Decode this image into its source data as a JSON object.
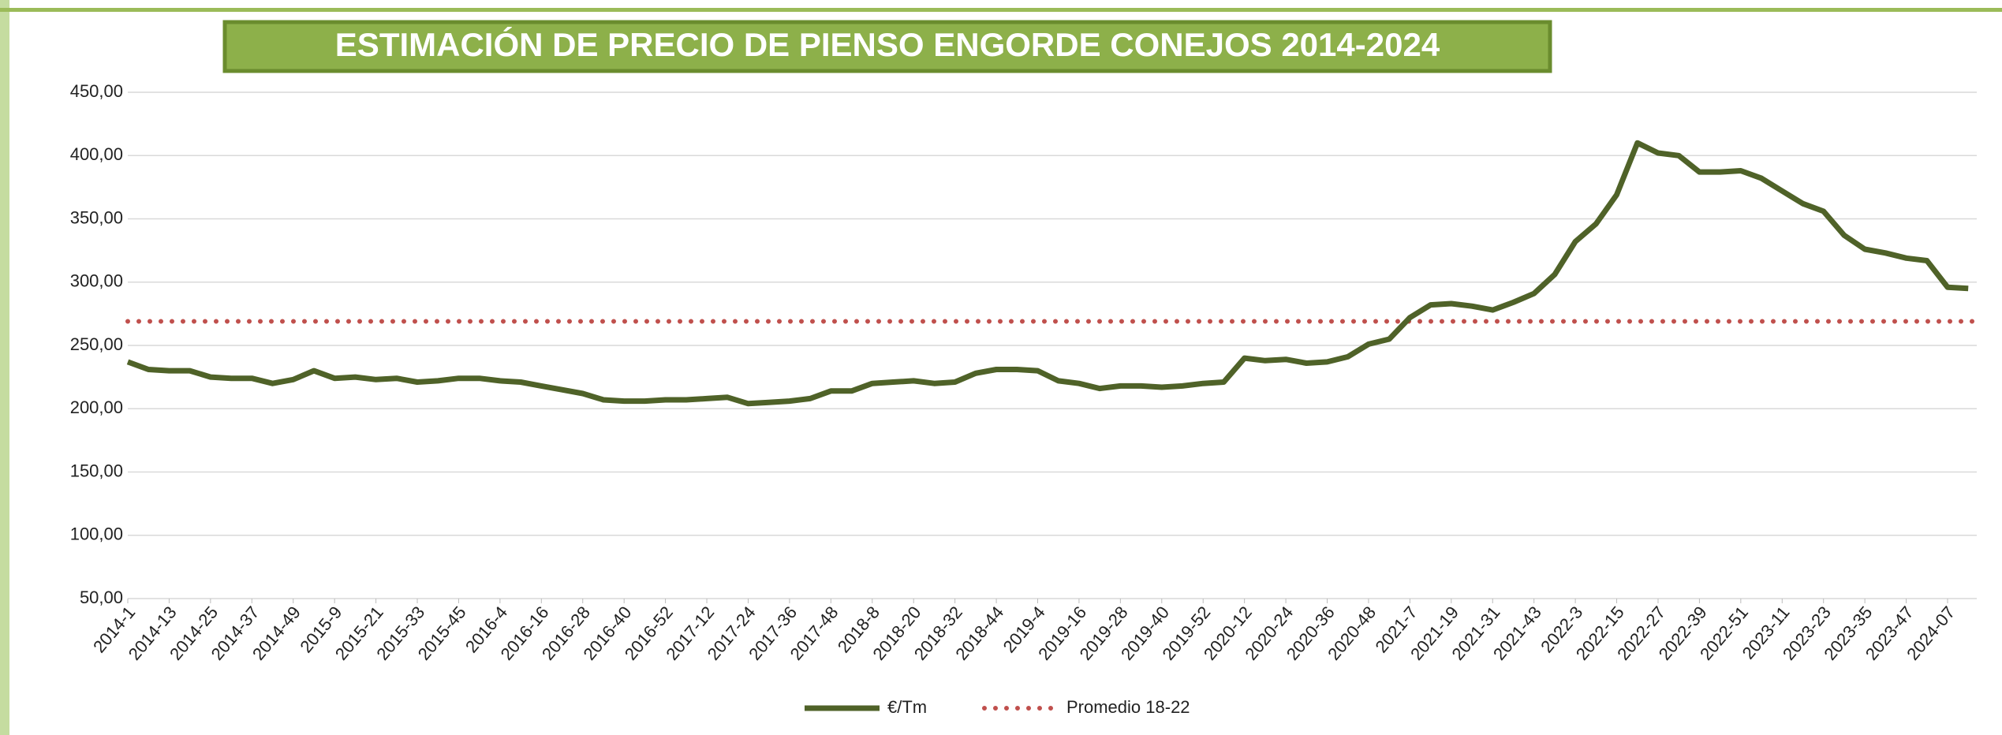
{
  "chart_data": {
    "type": "line",
    "title": "ESTIMACIÓN DE PRECIO DE PIENSO ENGORDE CONEJOS 2014-2024",
    "categories": [
      "2014-1",
      null,
      "2014-13",
      null,
      "2014-25",
      null,
      "2014-37",
      null,
      "2014-49",
      null,
      "2015-9",
      null,
      "2015-21",
      null,
      "2015-33",
      null,
      "2015-45",
      null,
      "2016-4",
      null,
      "2016-16",
      null,
      "2016-28",
      null,
      "2016-40",
      null,
      "2016-52",
      null,
      "2017-12",
      null,
      "2017-24",
      null,
      "2017-36",
      null,
      "2017-48",
      null,
      "2018-8",
      null,
      "2018-20",
      null,
      "2018-32",
      null,
      "2018-44",
      null,
      "2019-4",
      null,
      "2019-16",
      null,
      "2019-28",
      null,
      "2019-40",
      null,
      "2019-52",
      null,
      "2020-12",
      null,
      "2020-24",
      null,
      "2020-36",
      null,
      "2020-48",
      null,
      "2021-7",
      null,
      "2021-19",
      null,
      "2021-31",
      null,
      "2021-43",
      null,
      "2022-3",
      null,
      "2022-15",
      null,
      "2022-27",
      null,
      "2022-39",
      null,
      "2022-51",
      null,
      "2023-11",
      null,
      "2023-23",
      null,
      "2023-35",
      null,
      "2023-47",
      null,
      "2024-07",
      null
    ],
    "series": [
      {
        "name": "€/Tm",
        "color": "#4f6228",
        "values": [
          237,
          231,
          230,
          230,
          225,
          224,
          224,
          220,
          223,
          230,
          224,
          225,
          223,
          224,
          221,
          222,
          224,
          224,
          222,
          221,
          218,
          215,
          212,
          207,
          206,
          206,
          207,
          207,
          208,
          209,
          204,
          205,
          206,
          208,
          214,
          214,
          220,
          221,
          222,
          220,
          221,
          228,
          231,
          231,
          230,
          222,
          220,
          216,
          218,
          218,
          217,
          218,
          220,
          221,
          240,
          238,
          239,
          236,
          237,
          241,
          251,
          255,
          272,
          282,
          283,
          281,
          278,
          284,
          291,
          306,
          332,
          346,
          369,
          410,
          402,
          400,
          387,
          387,
          388,
          382,
          372,
          362,
          356,
          337,
          326,
          323,
          319,
          317,
          296,
          295
        ]
      }
    ],
    "average": {
      "name": "Promedio 18-22",
      "value": 269,
      "color": "#c0504d"
    },
    "ylim": [
      50,
      450
    ],
    "yticks": [
      {
        "value": 50,
        "label": "50,00"
      },
      {
        "value": 100,
        "label": "100,00"
      },
      {
        "value": 150,
        "label": "150,00"
      },
      {
        "value": 200,
        "label": "200,00"
      },
      {
        "value": 250,
        "label": "250,00"
      },
      {
        "value": 300,
        "label": "300,00"
      },
      {
        "value": 350,
        "label": "350,00"
      },
      {
        "value": 400,
        "label": "400,00"
      },
      {
        "value": 450,
        "label": "450,00"
      }
    ],
    "grid": true,
    "legend": "bottom"
  }
}
